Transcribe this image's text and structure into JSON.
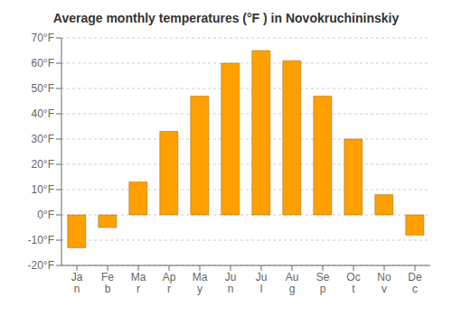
{
  "chart_data": {
    "type": "bar",
    "title": "Average monthly temperatures (°F ) in Novokruchininskiy",
    "categories": [
      "Ja\nn",
      "Fe\nb",
      "Ma\nr",
      "Ap\nr",
      "Ma\ny",
      "Ju\nn",
      "Ju\nl",
      "Au\ng",
      "Se\np",
      "Oc\nt",
      "No\nv",
      "De\nc"
    ],
    "values": [
      -13,
      -5,
      13,
      33,
      47,
      60,
      65,
      61,
      47,
      30,
      8,
      -8
    ],
    "color": "#FFA000",
    "ylim": [
      -20,
      70
    ],
    "yticks": [
      {
        "value": -20,
        "label": "-20°F"
      },
      {
        "value": -10,
        "label": "-10°F"
      },
      {
        "value": 0,
        "label": "0°F"
      },
      {
        "value": 10,
        "label": "10°F"
      },
      {
        "value": 20,
        "label": "20°F"
      },
      {
        "value": 30,
        "label": "30°F"
      },
      {
        "value": 40,
        "label": "40°F"
      },
      {
        "value": 50,
        "label": "50°F"
      },
      {
        "value": 60,
        "label": "60°F"
      },
      {
        "value": 70,
        "label": "70°F"
      }
    ],
    "grid": true
  }
}
